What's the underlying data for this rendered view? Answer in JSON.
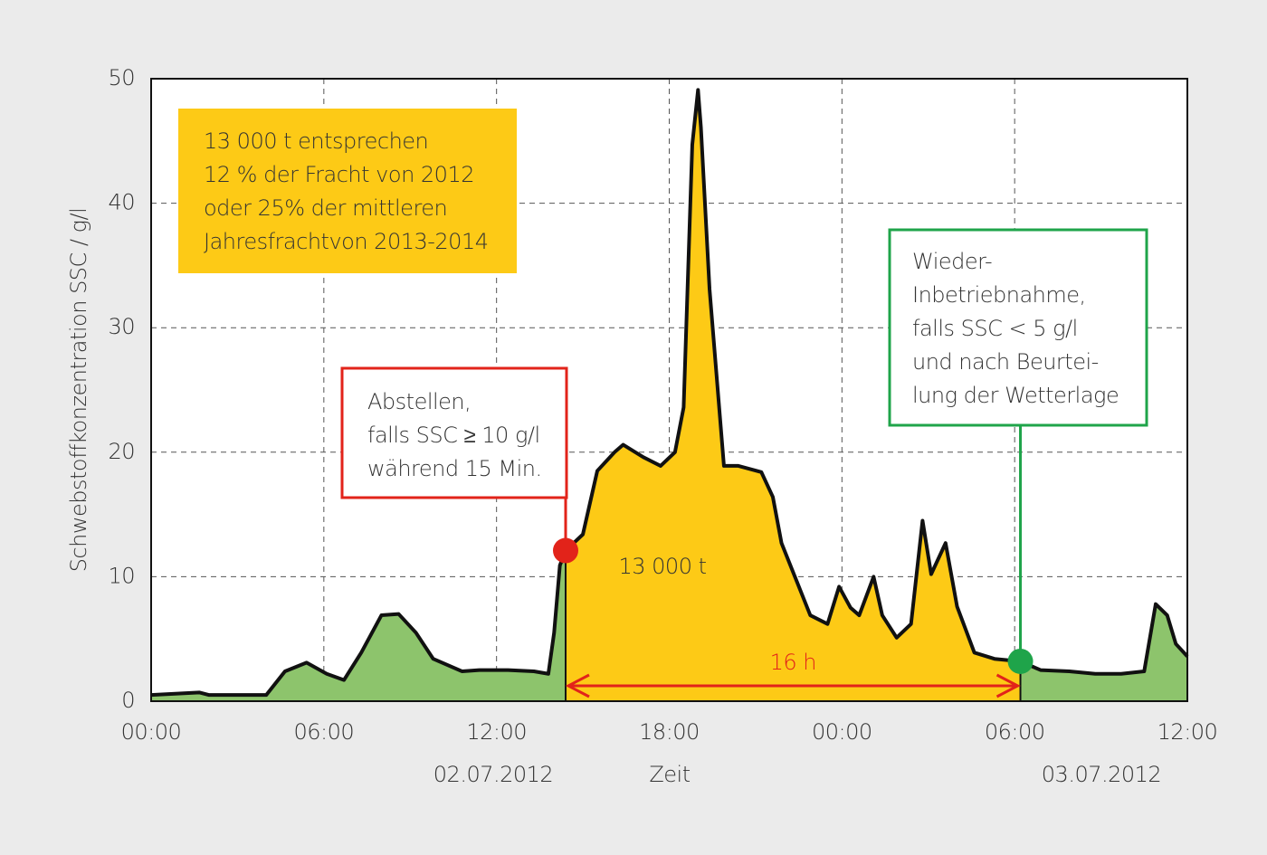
{
  "chart_data": {
    "type": "area",
    "xlabel": "Zeit",
    "ylabel": "Schwebstoffkonzentration SSC / g/l",
    "x": [
      0,
      1.67,
      2,
      4,
      4.65,
      5.4,
      6.1,
      6.7,
      7.3,
      8,
      8.6,
      9.2,
      9.8,
      10.8,
      11.4,
      12.4,
      13.3,
      13.8,
      14.0,
      14.2,
      14.4,
      15.0,
      15.5,
      16.1,
      16.4,
      17.1,
      17.7,
      18.2,
      18.5,
      18.8,
      19.0,
      19.1,
      19.4,
      19.9,
      20.4,
      21.2,
      21.6,
      21.9,
      22.4,
      22.9,
      23.5,
      23.9,
      24.3,
      24.6,
      25.1,
      25.4,
      25.9,
      26.4,
      26.8,
      27.1,
      27.6,
      28.0,
      28.6,
      29.3,
      30.2,
      30.9,
      31.9,
      32.8,
      33.7,
      34.5,
      34.9,
      35.3,
      35.6,
      36.0
    ],
    "values": [
      0.5,
      0.7,
      0.5,
      0.5,
      2.4,
      3.1,
      2.2,
      1.7,
      3.9,
      6.9,
      7.0,
      5.5,
      3.4,
      2.4,
      2.5,
      2.5,
      2.4,
      2.2,
      5.5,
      10.9,
      12.1,
      13.4,
      18.5,
      20.0,
      20.6,
      19.6,
      18.9,
      20.0,
      23.6,
      44.7,
      49.1,
      46.1,
      33.1,
      18.9,
      18.9,
      18.4,
      16.4,
      12.7,
      9.8,
      6.9,
      6.2,
      9.2,
      7.5,
      6.9,
      10.0,
      6.9,
      5.1,
      6.2,
      14.5,
      10.2,
      12.7,
      7.6,
      3.9,
      3.4,
      3.2,
      2.5,
      2.4,
      2.2,
      2.2,
      2.4,
      7.8,
      6.9,
      4.6,
      3.6
    ],
    "color": "#111111",
    "fill": "#8dc46c",
    "highlight_fill": "#fdca16",
    "xlim": [
      0,
      36
    ],
    "xticks": [
      {
        "value": 0,
        "label": "00:00"
      },
      {
        "value": 6,
        "label": "06:00"
      },
      {
        "value": 12,
        "label": "12:00"
      },
      {
        "value": 18,
        "label": "18:00"
      },
      {
        "value": 24,
        "label": "00:00"
      },
      {
        "value": 30,
        "label": "06:00"
      },
      {
        "value": 36,
        "label": "12:00"
      }
    ],
    "ylim": [
      0,
      50
    ],
    "yticks": [
      0,
      10,
      20,
      30,
      40,
      50
    ],
    "grid": true,
    "date_labels": [
      "02.07.2012",
      "03.07.2012"
    ],
    "info_box": {
      "text": [
        "13 000 t entsprechen",
        "12 % der Fracht von 2012",
        "oder 25% der mittleren",
        "Jahresfrachtvon 2013-2014"
      ],
      "color": "#fdca16"
    },
    "area_label": "13 000 t",
    "span": {
      "label": "16 h",
      "range": [
        14.4,
        30.2
      ],
      "color": "#e2231a"
    },
    "annotations": [
      {
        "text": [
          "Abstellen,",
          "falls SSC ≥ 10 g/l",
          "während 15 Min."
        ],
        "x": 14.4,
        "y": 12.1,
        "color": "#e2231a"
      },
      {
        "text": [
          "Wieder-",
          "Inbetriebnahme,",
          "falls SSC < 5 g/l",
          "und nach Beurtei-",
          "lung der Wetterlage"
        ],
        "x": 30.2,
        "y": 3.2,
        "color": "#1fa44a"
      }
    ]
  }
}
